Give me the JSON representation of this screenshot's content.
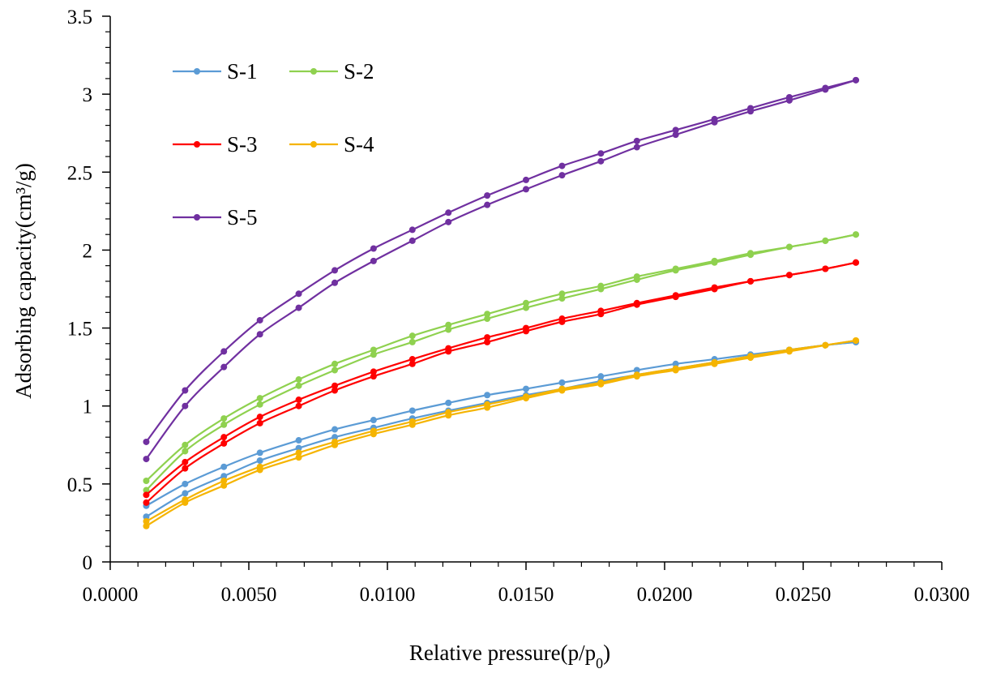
{
  "chart_data": {
    "type": "line",
    "title": "",
    "xlabel": "Relative pressure(p/p",
    "xlabel_sub": "0",
    "xlabel_end": ")",
    "ylabel": "Adsorbing capacity(cm³/g)",
    "xlim": [
      0,
      0.03
    ],
    "ylim": [
      0,
      3.5
    ],
    "x_ticks": [
      0,
      0.005,
      0.01,
      0.015,
      0.02,
      0.025,
      0.03
    ],
    "x_tick_labels": [
      "0.0000",
      "0.0050",
      "0.0100",
      "0.0150",
      "0.0200",
      "0.0250",
      "0.0300"
    ],
    "y_ticks": [
      0,
      0.5,
      1,
      1.5,
      2,
      2.5,
      3,
      3.5
    ],
    "y_tick_labels": [
      "0",
      "0.5",
      "1",
      "1.5",
      "2",
      "2.5",
      "3",
      "3.5"
    ],
    "grid": false,
    "legend_position": "top-left",
    "x": [
      0.0013,
      0.0027,
      0.0041,
      0.0054,
      0.0068,
      0.0081,
      0.0095,
      0.0109,
      0.0122,
      0.0136,
      0.015,
      0.0163,
      0.0177,
      0.019,
      0.0204,
      0.0218,
      0.0231,
      0.0245,
      0.0258,
      0.0269
    ],
    "series": [
      {
        "name": "S-1",
        "color": "#5b9bd5",
        "adsorption": [
          0.29,
          0.44,
          0.55,
          0.65,
          0.73,
          0.8,
          0.86,
          0.92,
          0.97,
          1.02,
          1.07,
          1.11,
          1.16,
          1.2,
          1.24,
          1.28,
          1.32,
          1.36,
          1.39,
          1.41
        ],
        "desorption": [
          0.36,
          0.5,
          0.61,
          0.7,
          0.78,
          0.85,
          0.91,
          0.97,
          1.02,
          1.07,
          1.11,
          1.15,
          1.19,
          1.23,
          1.27,
          1.3,
          1.33,
          1.36,
          1.39,
          1.41
        ]
      },
      {
        "name": "S-2",
        "color": "#8fd14f",
        "adsorption": [
          0.46,
          0.71,
          0.88,
          1.01,
          1.13,
          1.23,
          1.33,
          1.41,
          1.49,
          1.56,
          1.63,
          1.69,
          1.75,
          1.81,
          1.87,
          1.92,
          1.97,
          2.02,
          2.06,
          2.1
        ],
        "desorption": [
          0.52,
          0.75,
          0.92,
          1.05,
          1.17,
          1.27,
          1.36,
          1.45,
          1.52,
          1.59,
          1.66,
          1.72,
          1.77,
          1.83,
          1.88,
          1.93,
          1.98,
          2.02,
          2.06,
          2.1
        ]
      },
      {
        "name": "S-3",
        "color": "#ff0000",
        "adsorption": [
          0.38,
          0.6,
          0.76,
          0.89,
          1.0,
          1.1,
          1.19,
          1.27,
          1.35,
          1.41,
          1.48,
          1.54,
          1.59,
          1.65,
          1.7,
          1.75,
          1.8,
          1.84,
          1.88,
          1.92
        ],
        "desorption": [
          0.43,
          0.64,
          0.8,
          0.93,
          1.04,
          1.13,
          1.22,
          1.3,
          1.37,
          1.44,
          1.5,
          1.56,
          1.61,
          1.66,
          1.71,
          1.76,
          1.8,
          1.84,
          1.88,
          1.92
        ]
      },
      {
        "name": "S-4",
        "color": "#f5b400",
        "adsorption": [
          0.23,
          0.38,
          0.49,
          0.59,
          0.67,
          0.75,
          0.82,
          0.88,
          0.94,
          0.99,
          1.05,
          1.1,
          1.14,
          1.19,
          1.23,
          1.27,
          1.31,
          1.35,
          1.39,
          1.42
        ],
        "desorption": [
          0.26,
          0.4,
          0.52,
          0.61,
          0.7,
          0.77,
          0.84,
          0.9,
          0.96,
          1.01,
          1.06,
          1.11,
          1.15,
          1.2,
          1.24,
          1.28,
          1.32,
          1.36,
          1.39,
          1.42
        ]
      },
      {
        "name": "S-5",
        "color": "#7030a0",
        "adsorption": [
          0.66,
          1.0,
          1.25,
          1.46,
          1.63,
          1.79,
          1.93,
          2.06,
          2.18,
          2.29,
          2.39,
          2.48,
          2.57,
          2.66,
          2.74,
          2.82,
          2.89,
          2.96,
          3.03,
          3.09
        ],
        "desorption": [
          0.77,
          1.1,
          1.35,
          1.55,
          1.72,
          1.87,
          2.01,
          2.13,
          2.24,
          2.35,
          2.45,
          2.54,
          2.62,
          2.7,
          2.77,
          2.84,
          2.91,
          2.98,
          3.04,
          3.09
        ]
      }
    ]
  }
}
